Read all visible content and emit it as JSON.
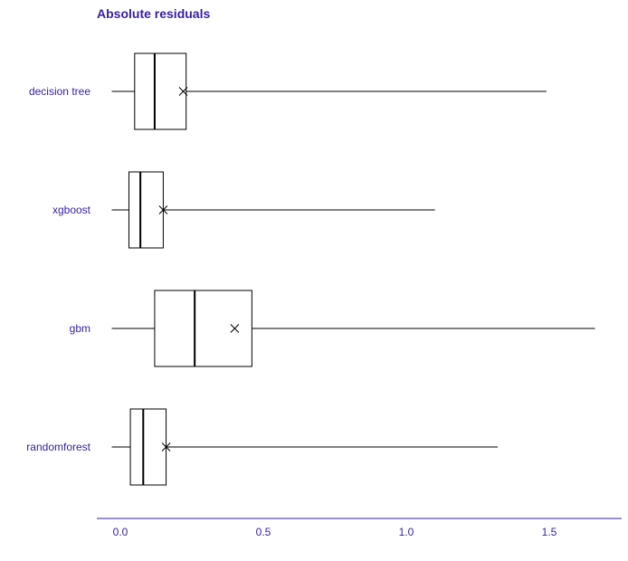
{
  "chart_data": {
    "type": "boxplot",
    "title": "Absolute residuals",
    "xlabel": "",
    "ylabel": "",
    "xlim": [
      -0.08,
      1.76
    ],
    "x_ticks": [
      "0.0",
      "0.5",
      "1.0",
      "1.5"
    ],
    "x_tick_values": [
      0.0,
      0.5,
      1.0,
      1.5
    ],
    "grid": false,
    "colors": {
      "text": "#371ea3",
      "lines": "#000000",
      "axis": "#371ea3"
    },
    "categories": [
      "decision tree",
      "xgboost",
      "gbm",
      "randomforest"
    ],
    "boxes": [
      {
        "name": "decision tree",
        "whisker_min": -0.03,
        "q1": 0.05,
        "median": 0.12,
        "q3": 0.23,
        "whisker_max": 1.49,
        "mean": 0.22
      },
      {
        "name": "xgboost",
        "whisker_min": -0.03,
        "q1": 0.03,
        "median": 0.07,
        "q3": 0.15,
        "whisker_max": 1.1,
        "mean": 0.15
      },
      {
        "name": "gbm",
        "whisker_min": -0.03,
        "q1": 0.12,
        "median": 0.26,
        "q3": 0.46,
        "whisker_max": 1.66,
        "mean": 0.4
      },
      {
        "name": "randomforest",
        "whisker_min": -0.03,
        "q1": 0.035,
        "median": 0.08,
        "q3": 0.16,
        "whisker_max": 1.32,
        "mean": 0.16
      }
    ]
  }
}
